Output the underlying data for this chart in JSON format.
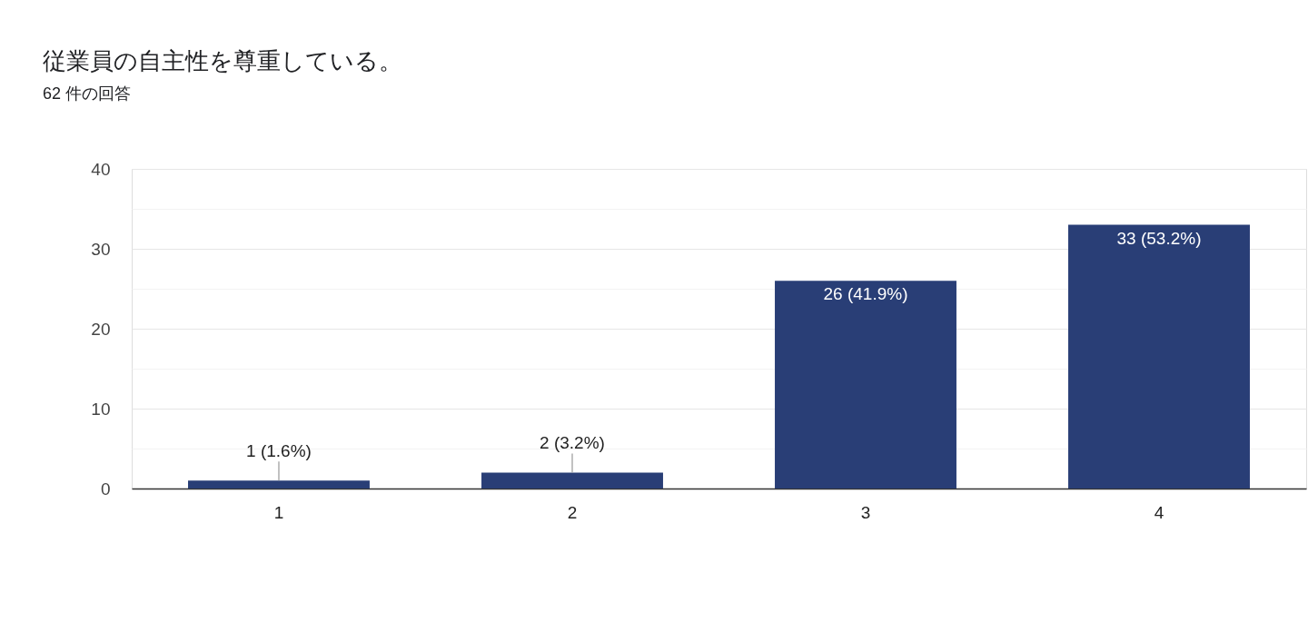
{
  "chart_data": {
    "type": "bar",
    "title": "従業員の自主性を尊重している。",
    "subtitle": "62 件の回答",
    "categories": [
      "1",
      "2",
      "3",
      "4"
    ],
    "values": [
      1,
      2,
      26,
      33
    ],
    "color": "#293e76",
    "value_labels": [
      "1 (1.6%)",
      "2 (3.2%)",
      "26 (41.9%)",
      "33 (53.2%)"
    ],
    "ylim": [
      0,
      40
    ],
    "yticks": [
      0,
      {
        "value": 5,
        "label": null
      },
      10,
      {
        "value": 15,
        "label": null
      },
      20,
      {
        "value": 25,
        "label": null
      },
      30,
      {
        "value": 35,
        "label": null
      },
      40
    ],
    "grid": "y"
  }
}
